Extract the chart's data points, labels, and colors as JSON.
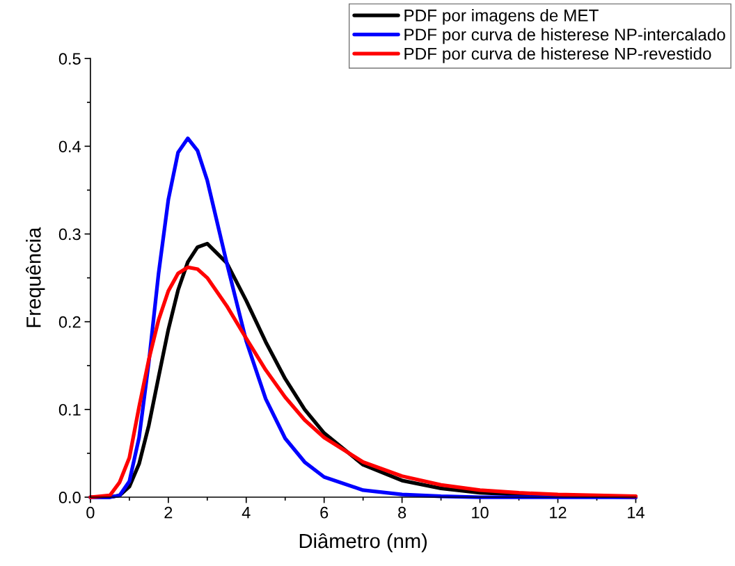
{
  "chart_data": {
    "type": "line",
    "xlabel": "Diâmetro (nm)",
    "ylabel": "Frequência",
    "x": [
      0,
      0.5,
      0.75,
      1,
      1.25,
      1.5,
      1.75,
      2,
      2.25,
      2.5,
      2.75,
      3,
      3.5,
      4,
      4.5,
      5,
      5.5,
      6,
      7,
      8,
      9,
      10,
      11,
      12,
      13,
      14
    ],
    "series": [
      {
        "name": "PDF por imagens de MET",
        "color": "#000000",
        "values": [
          0,
          0,
          0.002,
          0.012,
          0.038,
          0.082,
          0.137,
          0.191,
          0.236,
          0.268,
          0.285,
          0.289,
          0.267,
          0.224,
          0.177,
          0.135,
          0.1,
          0.073,
          0.037,
          0.019,
          0.01,
          0.005,
          0.003,
          0.001,
          0.001,
          0
        ]
      },
      {
        "name": "PDF por curva de histerese NP-intercalado",
        "color": "#0000ff",
        "values": [
          0,
          0,
          0.002,
          0.018,
          0.068,
          0.154,
          0.255,
          0.339,
          0.393,
          0.409,
          0.395,
          0.361,
          0.267,
          0.178,
          0.112,
          0.067,
          0.04,
          0.023,
          0.008,
          0.003,
          0.001,
          0,
          0,
          0,
          0,
          0
        ]
      },
      {
        "name": "PDF por curva de histerese NP-revestido",
        "color": "#ff0000",
        "values": [
          0,
          0.002,
          0.017,
          0.045,
          0.103,
          0.157,
          0.202,
          0.235,
          0.255,
          0.262,
          0.26,
          0.25,
          0.218,
          0.181,
          0.145,
          0.114,
          0.088,
          0.068,
          0.04,
          0.024,
          0.014,
          0.008,
          0.005,
          0.003,
          0.002,
          0.001
        ]
      }
    ],
    "xlim": [
      0,
      14
    ],
    "xticks": [
      0,
      2,
      4,
      6,
      8,
      10,
      12,
      14
    ],
    "ylim": [
      0,
      0.5
    ],
    "yticks": [
      {
        "value": 0,
        "label": "0.0"
      },
      0.1,
      0.2,
      0.3,
      0.4,
      0.5
    ],
    "legend": "top right",
    "grid": false,
    "marker": "none",
    "line_style": "solid"
  }
}
